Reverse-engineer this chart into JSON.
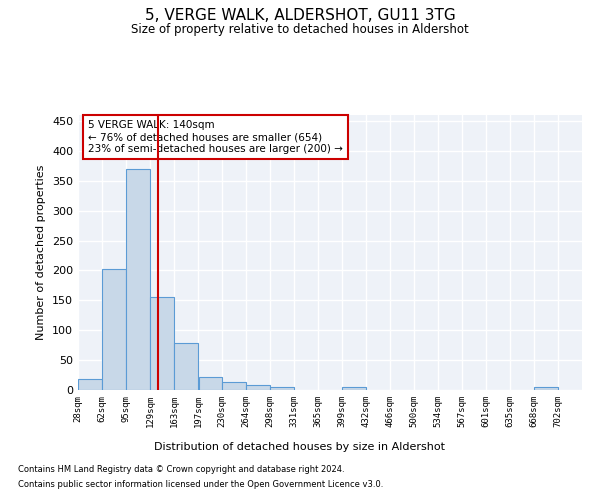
{
  "title": "5, VERGE WALK, ALDERSHOT, GU11 3TG",
  "subtitle": "Size of property relative to detached houses in Aldershot",
  "xlabel": "Distribution of detached houses by size in Aldershot",
  "ylabel": "Number of detached properties",
  "bar_color": "#c8d8e8",
  "bar_edge_color": "#5b9bd5",
  "background_color": "#ffffff",
  "plot_bg_color": "#eef2f8",
  "grid_color": "#ffffff",
  "vline_x": 140,
  "vline_color": "#cc0000",
  "annotation_text": "5 VERGE WALK: 140sqm\n← 76% of detached houses are smaller (654)\n23% of semi-detached houses are larger (200) →",
  "annotation_box_color": "#ffffff",
  "annotation_box_edge": "#cc0000",
  "bins_left_edges": [
    28,
    62,
    95,
    129,
    163,
    197,
    230,
    264,
    298,
    331,
    365,
    399,
    432,
    466,
    500,
    534,
    567,
    601,
    635,
    668
  ],
  "bin_width": 34,
  "bar_values": [
    18,
    202,
    369,
    156,
    78,
    21,
    14,
    8,
    5,
    0,
    0,
    5,
    0,
    0,
    0,
    0,
    0,
    0,
    0,
    5
  ],
  "xtick_labels": [
    "28sqm",
    "62sqm",
    "95sqm",
    "129sqm",
    "163sqm",
    "197sqm",
    "230sqm",
    "264sqm",
    "298sqm",
    "331sqm",
    "365sqm",
    "399sqm",
    "432sqm",
    "466sqm",
    "500sqm",
    "534sqm",
    "567sqm",
    "601sqm",
    "635sqm",
    "668sqm",
    "702sqm"
  ],
  "xtick_positions": [
    28,
    62,
    95,
    129,
    163,
    197,
    230,
    264,
    298,
    331,
    365,
    399,
    432,
    466,
    500,
    534,
    567,
    601,
    635,
    668,
    702
  ],
  "ylim": [
    0,
    460
  ],
  "xlim": [
    28,
    736
  ],
  "yticks": [
    0,
    50,
    100,
    150,
    200,
    250,
    300,
    350,
    400,
    450
  ],
  "footer_line1": "Contains HM Land Registry data © Crown copyright and database right 2024.",
  "footer_line2": "Contains public sector information licensed under the Open Government Licence v3.0."
}
